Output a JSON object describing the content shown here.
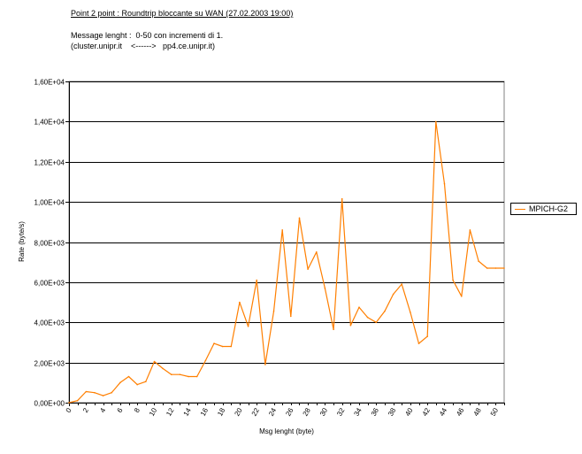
{
  "header": {
    "title": "Point 2 point : Roundtrip bloccante su WAN (27.02.2003 19:00)",
    "line1": "Message lenght :  0-50 con incrementi di 1.",
    "line2": "(cluster.unipr.it    <------>   pp4.ce.unipr.it)"
  },
  "chart_data": {
    "type": "line",
    "xlabel": "Msg lenght (byte)",
    "ylabel": "Rate (byte/s)",
    "xlim": [
      0,
      51
    ],
    "ylim": [
      0,
      16000
    ],
    "grid": true,
    "legend_position": "right",
    "x_ticks": [
      "0",
      "2",
      "4",
      "6",
      "8",
      "10",
      "12",
      "14",
      "16",
      "18",
      "20",
      "22",
      "24",
      "26",
      "28",
      "30",
      "32",
      "34",
      "36",
      "38",
      "40",
      "42",
      "44",
      "46",
      "48",
      "50"
    ],
    "y_ticks": [
      "0,00E+00",
      "2,00E+03",
      "4,00E+03",
      "6,00E+03",
      "8,00E+03",
      "1,00E+04",
      "1,20E+04",
      "1,40E+04",
      "1,60E+04"
    ],
    "colors": {
      "series": "#ff7f00",
      "grid": "#000000",
      "plot_bg": "#ffffff"
    },
    "series": [
      {
        "name": "MPICH-G2",
        "x": [
          0,
          1,
          2,
          3,
          4,
          5,
          6,
          7,
          8,
          9,
          10,
          11,
          12,
          13,
          14,
          15,
          16,
          17,
          18,
          19,
          20,
          21,
          22,
          23,
          24,
          25,
          26,
          27,
          28,
          29,
          30,
          31,
          32,
          33,
          34,
          35,
          36,
          37,
          38,
          39,
          40,
          41,
          42,
          43,
          44,
          45,
          46,
          47,
          48,
          49,
          50,
          51
        ],
        "values": [
          0,
          100,
          550,
          500,
          350,
          500,
          1000,
          1300,
          900,
          1050,
          2050,
          1700,
          1400,
          1400,
          1300,
          1300,
          2100,
          2950,
          2800,
          2800,
          5000,
          3800,
          6100,
          1900,
          4550,
          8600,
          4300,
          9200,
          6650,
          7500,
          5700,
          3650,
          10150,
          3850,
          4750,
          4250,
          4000,
          4550,
          5400,
          5900,
          4500,
          2950,
          3300,
          14000,
          10900,
          6100,
          5300,
          8600,
          7050,
          6700,
          6700,
          6700
        ]
      }
    ]
  }
}
